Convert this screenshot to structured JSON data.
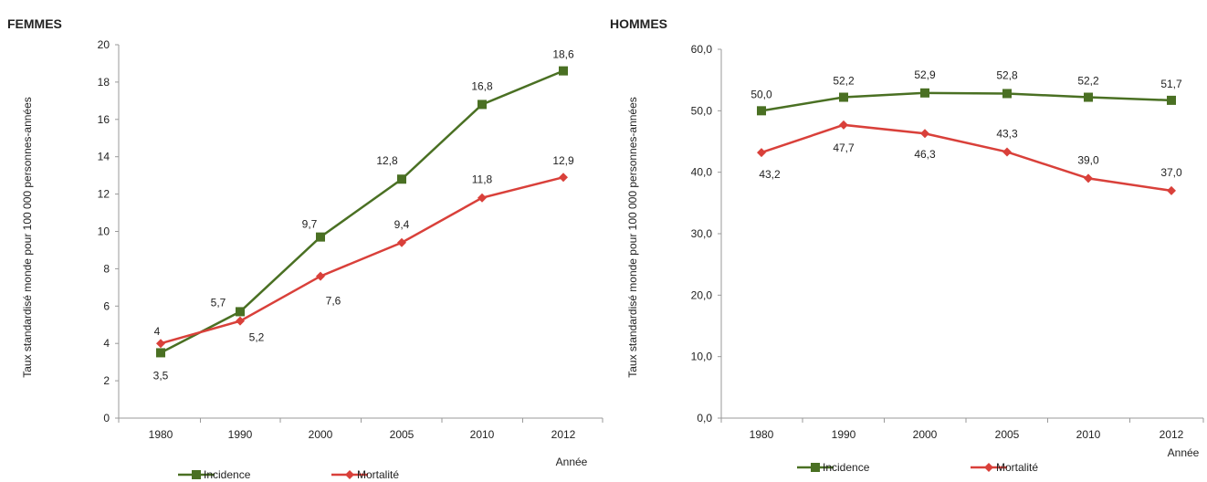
{
  "colors": {
    "incidence": "#4a7023",
    "mortalite": "#d9403a",
    "axis": "#9a9a9a"
  },
  "chart_data": [
    {
      "type": "line",
      "title": "FEMMES",
      "ylabel": "Taux standardisé monde pour 100 000 personnes-années",
      "xlabel": "Année",
      "categories": [
        "1980",
        "1990",
        "2000",
        "2005",
        "2010",
        "2012"
      ],
      "ylim": [
        0,
        20
      ],
      "yticks": [
        0,
        2,
        4,
        6,
        8,
        10,
        12,
        14,
        16,
        18,
        20
      ],
      "ytick_labels": [
        "0",
        "2",
        "4",
        "6",
        "8",
        "10",
        "12",
        "14",
        "16",
        "18",
        "20"
      ],
      "grid": false,
      "legend_position": "bottom",
      "series": [
        {
          "name": "Incidence",
          "marker": "square",
          "values": [
            3.5,
            5.7,
            9.7,
            12.8,
            16.8,
            18.6
          ],
          "labels": [
            "3,5",
            "5,7",
            "9,7",
            "12,8",
            "16,8",
            "18,6"
          ]
        },
        {
          "name": "Mortalité",
          "marker": "diamond",
          "values": [
            4.0,
            5.2,
            7.6,
            9.4,
            11.8,
            12.9
          ],
          "labels": [
            "4",
            "5,2",
            "7,6",
            "9,4",
            "11,8",
            "12,9"
          ]
        }
      ]
    },
    {
      "type": "line",
      "title": "HOMMES",
      "ylabel": "Taux standardisé monde pour 100 000 personnes-années",
      "xlabel": "Année",
      "categories": [
        "1980",
        "1990",
        "2000",
        "2005",
        "2010",
        "2012"
      ],
      "ylim": [
        0,
        60
      ],
      "yticks": [
        0,
        10,
        20,
        30,
        40,
        50,
        60
      ],
      "ytick_labels": [
        "0,0",
        "10,0",
        "20,0",
        "30,0",
        "40,0",
        "50,0",
        "60,0"
      ],
      "grid": false,
      "legend_position": "bottom",
      "series": [
        {
          "name": "Incidence",
          "marker": "square",
          "values": [
            50.0,
            52.2,
            52.9,
            52.8,
            52.2,
            51.7
          ],
          "labels": [
            "50,0",
            "52,2",
            "52,9",
            "52,8",
            "52,2",
            "51,7"
          ]
        },
        {
          "name": "Mortalité",
          "marker": "diamond",
          "values": [
            43.2,
            47.7,
            46.3,
            43.3,
            39.0,
            37.0
          ],
          "labels": [
            "43,2",
            "47,7",
            "46,3",
            "43,3",
            "39,0",
            "37,0"
          ]
        }
      ]
    }
  ]
}
